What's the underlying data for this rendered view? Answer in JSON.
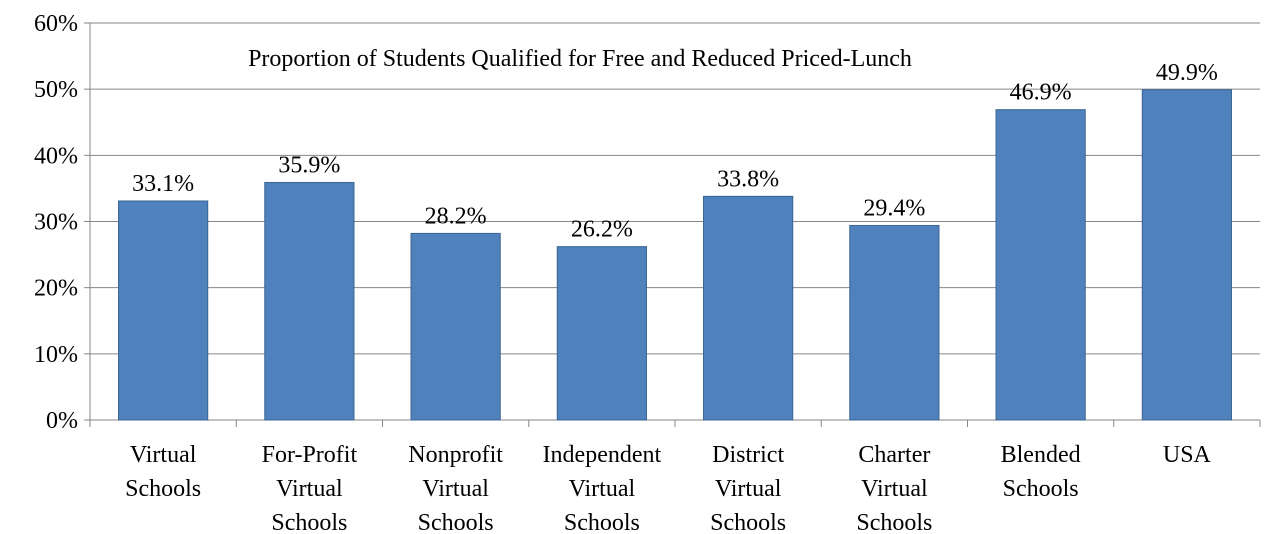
{
  "chart_data": {
    "type": "bar",
    "title": "Proportion of Students Qualified for Free and Reduced Priced-Lunch",
    "categories": [
      "Virtual Schools",
      "For-Profit Virtual Schools",
      "Nonprofit Virtual Schools",
      "Independent Virtual Schools",
      "District Virtual Schools",
      "Charter Virtual Schools",
      "Blended Schools",
      "USA"
    ],
    "values": [
      33.1,
      35.9,
      28.2,
      26.2,
      33.8,
      29.4,
      46.9,
      49.9
    ],
    "value_labels": [
      "33.1%",
      "35.9%",
      "28.2%",
      "26.2%",
      "33.8%",
      "29.4%",
      "46.9%",
      "49.9%"
    ],
    "color": "#4f81bd",
    "ylim": [
      0,
      60
    ],
    "yticks": [
      {
        "value": 0,
        "label": "0%"
      },
      {
        "value": 10,
        "label": "10%"
      },
      {
        "value": 20,
        "label": "20%"
      },
      {
        "value": 30,
        "label": "30%"
      },
      {
        "value": 40,
        "label": "40%"
      },
      {
        "value": 50,
        "label": "50%"
      },
      {
        "value": 60,
        "label": "60%"
      }
    ],
    "grid": true
  }
}
